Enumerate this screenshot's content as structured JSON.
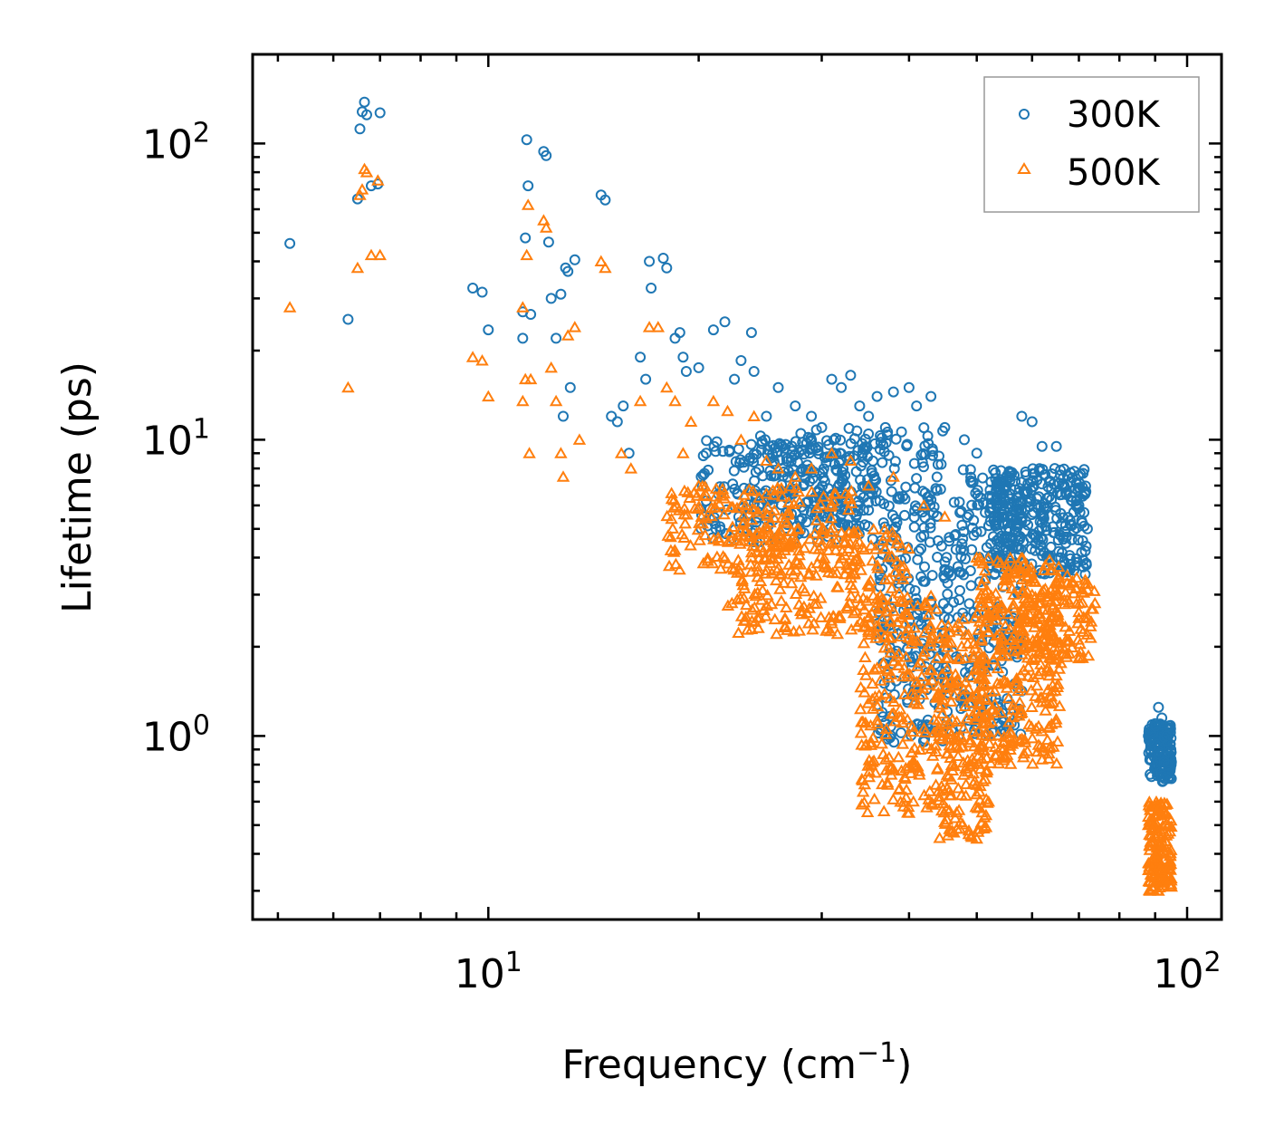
{
  "chart_data": {
    "type": "scatter",
    "xscale": "log",
    "yscale": "log",
    "xlabel": "Frequency (cm",
    "xlabel_sup": "−1",
    "xlabel_close": ")",
    "ylabel": "Lifetime (ps)",
    "xlim": [
      4.6,
      112
    ],
    "ylim": [
      0.24,
      200
    ],
    "x_ticks": [
      {
        "value": 10,
        "base": "10",
        "exp": "1"
      },
      {
        "value": 100,
        "base": "10",
        "exp": "2"
      }
    ],
    "y_ticks": [
      {
        "value": 1,
        "base": "10",
        "exp": "0"
      },
      {
        "value": 10,
        "base": "10",
        "exp": "1"
      },
      {
        "value": 100,
        "base": "10",
        "exp": "2"
      }
    ],
    "legend_position": "top-right",
    "colors": {
      "s300": "#1f77b4",
      "s500": "#ff7f0e"
    },
    "series": [
      {
        "name": "300K",
        "marker": "circle",
        "color": "#1f77b4",
        "points": [
          [
            5.2,
            46
          ],
          [
            6.3,
            25.5
          ],
          [
            6.5,
            65
          ],
          [
            6.55,
            112
          ],
          [
            6.6,
            128
          ],
          [
            6.65,
            138
          ],
          [
            6.7,
            125
          ],
          [
            6.8,
            72
          ],
          [
            6.95,
            73
          ],
          [
            7.0,
            127
          ],
          [
            9.5,
            32.5
          ],
          [
            9.8,
            31.5
          ],
          [
            10.0,
            23.5
          ],
          [
            11.2,
            27
          ],
          [
            11.3,
            48
          ],
          [
            11.35,
            103
          ],
          [
            11.4,
            72
          ],
          [
            11.2,
            22
          ],
          [
            11.5,
            26.5
          ],
          [
            12.0,
            94
          ],
          [
            12.1,
            91
          ],
          [
            12.2,
            46.5
          ],
          [
            12.3,
            30
          ],
          [
            12.5,
            22
          ],
          [
            12.7,
            31
          ],
          [
            12.9,
            38
          ],
          [
            13.0,
            37
          ],
          [
            13.3,
            40.5
          ],
          [
            13.1,
            15
          ],
          [
            12.8,
            12
          ],
          [
            14.5,
            67
          ],
          [
            14.7,
            64.5
          ],
          [
            15.0,
            12
          ],
          [
            15.3,
            11.5
          ],
          [
            15.6,
            13
          ],
          [
            15.9,
            9
          ],
          [
            16.5,
            19
          ],
          [
            16.8,
            16
          ],
          [
            17.0,
            40
          ],
          [
            17.1,
            32.5
          ],
          [
            17.8,
            41
          ],
          [
            18.0,
            38
          ],
          [
            18.5,
            22
          ],
          [
            18.8,
            23
          ],
          [
            19.0,
            19
          ],
          [
            19.2,
            17
          ],
          [
            20.0,
            17.5
          ],
          [
            20.5,
            9
          ],
          [
            21.0,
            23.5
          ],
          [
            21.8,
            25
          ],
          [
            22.5,
            16
          ],
          [
            23.0,
            18.5
          ],
          [
            23.8,
            23
          ],
          [
            24.0,
            17
          ],
          [
            25.0,
            12
          ],
          [
            26.0,
            15
          ],
          [
            27.5,
            13
          ],
          [
            28.0,
            10.5
          ],
          [
            29.0,
            12
          ],
          [
            30.0,
            11
          ],
          [
            31.0,
            16
          ],
          [
            32.0,
            15
          ],
          [
            33.0,
            16.5
          ],
          [
            34.0,
            13
          ],
          [
            35.0,
            12
          ],
          [
            36.0,
            14
          ],
          [
            37.0,
            11
          ],
          [
            38.0,
            14.5
          ],
          [
            40.0,
            15
          ],
          [
            41.0,
            13
          ],
          [
            43.0,
            14
          ],
          [
            45.0,
            11
          ],
          [
            48.0,
            10
          ],
          [
            50.0,
            9
          ],
          [
            55.0,
            7
          ],
          [
            58.0,
            12
          ],
          [
            60.0,
            11.5
          ],
          [
            62.0,
            9.5
          ],
          [
            65.0,
            9.5
          ],
          [
            70.0,
            6
          ],
          [
            72.0,
            5
          ],
          [
            88.0,
            1.0
          ],
          [
            90.0,
            1.1
          ],
          [
            91.0,
            1.25
          ],
          [
            92.0,
            1.15
          ],
          [
            94.0,
            1.0
          ]
        ],
        "clusters": [
          {
            "x": [
              20,
              36
            ],
            "y": [
              4.5,
              10
            ],
            "n": 220
          },
          {
            "x": [
              24,
              45
            ],
            "y": [
              5,
              11
            ],
            "n": 220
          },
          {
            "x": [
              36,
              46
            ],
            "y": [
              0.95,
              5
            ],
            "n": 200
          },
          {
            "x": [
              46,
              58
            ],
            "y": [
              1.0,
              8
            ],
            "n": 220
          },
          {
            "x": [
              52,
              72
            ],
            "y": [
              3.5,
              8
            ],
            "n": 320
          },
          {
            "x": [
              88,
              95
            ],
            "y": [
              0.7,
              1.1
            ],
            "n": 150
          }
        ]
      },
      {
        "name": "500K",
        "marker": "triangle",
        "color": "#ff7f0e",
        "points": [
          [
            5.2,
            28
          ],
          [
            6.3,
            15
          ],
          [
            6.5,
            38
          ],
          [
            6.55,
            67
          ],
          [
            6.6,
            70
          ],
          [
            6.65,
            82
          ],
          [
            6.7,
            80
          ],
          [
            6.8,
            42
          ],
          [
            6.95,
            75
          ],
          [
            7.0,
            42
          ],
          [
            9.5,
            19
          ],
          [
            9.8,
            18.5
          ],
          [
            10.0,
            14
          ],
          [
            11.2,
            28
          ],
          [
            11.3,
            16
          ],
          [
            11.35,
            42
          ],
          [
            11.4,
            62
          ],
          [
            11.45,
            9
          ],
          [
            11.5,
            16
          ],
          [
            11.2,
            13.5
          ],
          [
            12.0,
            55
          ],
          [
            12.1,
            52
          ],
          [
            12.3,
            17.5
          ],
          [
            12.5,
            13.5
          ],
          [
            12.7,
            9
          ],
          [
            12.8,
            7.5
          ],
          [
            13.0,
            22.5
          ],
          [
            13.3,
            24
          ],
          [
            13.5,
            10
          ],
          [
            14.5,
            40
          ],
          [
            14.7,
            38
          ],
          [
            15.5,
            9
          ],
          [
            16.0,
            8
          ],
          [
            16.5,
            13.5
          ],
          [
            17.0,
            24
          ],
          [
            17.5,
            24
          ],
          [
            18.0,
            15
          ],
          [
            18.5,
            13.5
          ],
          [
            19.0,
            9
          ],
          [
            19.5,
            11.5
          ],
          [
            20.0,
            7
          ],
          [
            20.5,
            6.5
          ],
          [
            21.0,
            13.5
          ],
          [
            22.0,
            12.5
          ],
          [
            23.0,
            10
          ],
          [
            24.0,
            12
          ],
          [
            25.0,
            8.5
          ],
          [
            26.0,
            8
          ],
          [
            27.5,
            7.5
          ],
          [
            29.0,
            8
          ],
          [
            31.0,
            9
          ],
          [
            33.0,
            8.5
          ],
          [
            35.0,
            7
          ],
          [
            38.0,
            7.5
          ],
          [
            42.0,
            6
          ],
          [
            45.0,
            5.5
          ],
          [
            50.0,
            4
          ],
          [
            55.0,
            3.5
          ],
          [
            60.0,
            3
          ],
          [
            65.0,
            3
          ],
          [
            70.0,
            2.5
          ],
          [
            72.0,
            2.2
          ],
          [
            65.0,
            1.6
          ],
          [
            62.0,
            1.3
          ],
          [
            58.0,
            1.2
          ],
          [
            55.0,
            0.85
          ],
          [
            52.0,
            0.6
          ],
          [
            50.0,
            0.45
          ],
          [
            40.0,
            0.55
          ],
          [
            88.0,
            0.5
          ],
          [
            90.0,
            0.32
          ],
          [
            91.0,
            0.3
          ],
          [
            92.0,
            0.35
          ],
          [
            94.0,
            0.5
          ]
        ],
        "clusters": [
          {
            "x": [
              18,
              34
            ],
            "y": [
              3.5,
              7
            ],
            "n": 200
          },
          {
            "x": [
              22,
              40
            ],
            "y": [
              2.2,
              5
            ],
            "n": 240
          },
          {
            "x": [
              34,
              44
            ],
            "y": [
              0.55,
              3
            ],
            "n": 220
          },
          {
            "x": [
              44,
              52
            ],
            "y": [
              0.45,
              2.5
            ],
            "n": 220
          },
          {
            "x": [
              50,
              66
            ],
            "y": [
              0.8,
              4
            ],
            "n": 320
          },
          {
            "x": [
              58,
              74
            ],
            "y": [
              1.8,
              3.5
            ],
            "n": 120
          },
          {
            "x": [
              88,
              95
            ],
            "y": [
              0.3,
              0.6
            ],
            "n": 150
          }
        ]
      }
    ]
  }
}
